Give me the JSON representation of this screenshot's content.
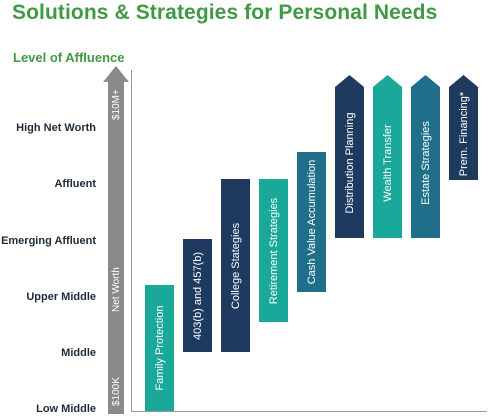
{
  "header": {
    "title": "Solutions & Strategies for Personal Needs"
  },
  "y_axis": {
    "title": "Level of Affluence",
    "levels": [
      "High Net Worth",
      "Affluent",
      "Emerging Affluent",
      "Upper Middle",
      "Middle",
      "Low Middle"
    ],
    "arrow_labels": {
      "top": "$10M+",
      "middle": "Net Worth",
      "bottom": "$100K"
    }
  },
  "colors": {
    "navy": "#1f3a5f",
    "teal": "#1aa89b",
    "blue": "#1f6f8b",
    "arrow": "#8a8a8a",
    "green": "#3f9a43"
  },
  "bars": [
    {
      "label": "Family Protection",
      "color": "teal",
      "shape": "rect"
    },
    {
      "label": "403(b) and 457(b)",
      "color": "navy",
      "shape": "rect"
    },
    {
      "label": "College Stategies",
      "color": "navy",
      "shape": "rect"
    },
    {
      "label": "Retirement Strategies",
      "color": "teal",
      "shape": "rect"
    },
    {
      "label": "Cash Value Accumulation",
      "color": "blue",
      "shape": "rect"
    },
    {
      "label": "Distribution Planning",
      "color": "navy",
      "shape": "arrow"
    },
    {
      "label": "Wealth Transfer",
      "color": "teal",
      "shape": "arrow"
    },
    {
      "label": "Estate Strategies",
      "color": "blue",
      "shape": "arrow"
    },
    {
      "label": "Prem. Financing*",
      "color": "navy",
      "shape": "arrow"
    }
  ]
}
